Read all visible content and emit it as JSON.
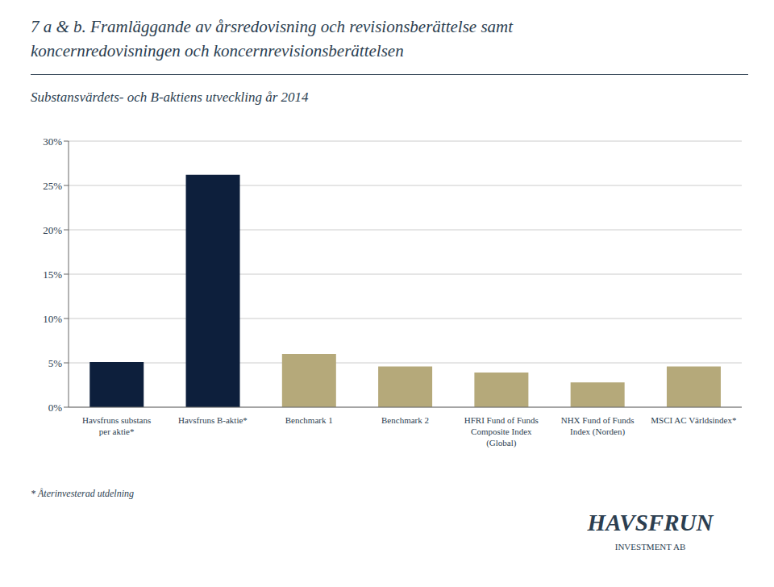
{
  "chart_data": {
    "type": "bar",
    "title": "7 a & b. Framläggande av årsredovisning och revisionsberättelse samt\nkoncernredovisningen och koncernrevisionsberättelsen",
    "subtitle": "Substansvärdets- och B-aktiens utveckling år 2014",
    "categories": [
      "Havsfruns substans\nper aktie*",
      "Havsfruns B-aktie*",
      "Benchmark 1",
      "Benchmark 2",
      "HFRI Fund of Funds\nComposite Index\n(Global)",
      "NHX Fund of Funds\nIndex (Norden)",
      "MSCI AC Världsindex*"
    ],
    "values": [
      0.051,
      0.262,
      0.06,
      0.046,
      0.039,
      0.028,
      0.046
    ],
    "colors": [
      "#0d1f3c",
      "#0d1f3c",
      "#b5a97a",
      "#b5a97a",
      "#b5a97a",
      "#b5a97a",
      "#b5a97a"
    ],
    "ylim": [
      0,
      0.3
    ],
    "yticks": [
      {
        "value": 0.0,
        "label": "0%"
      },
      {
        "value": 0.05,
        "label": "5%"
      },
      {
        "value": 0.1,
        "label": "10%"
      },
      {
        "value": 0.15,
        "label": "15%"
      },
      {
        "value": 0.2,
        "label": "20%"
      },
      {
        "value": 0.25,
        "label": "25%"
      },
      {
        "value": 0.3,
        "label": "30%"
      }
    ],
    "grid": true,
    "annotations": [
      "* Återinvesterad utdelning",
      "HAVSFRUN",
      "INVESTMENT AB"
    ]
  }
}
